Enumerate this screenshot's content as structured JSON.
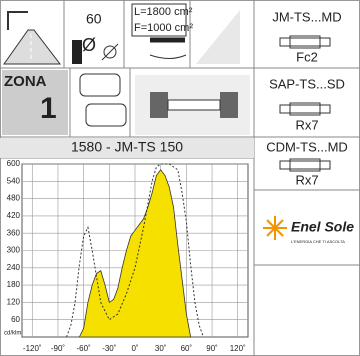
{
  "icons": {
    "speed": "60",
    "pole_symbol": "Ø",
    "surface_l": "L=1800 cm²",
    "surface_f": "F=1000 cm²",
    "zone": "ZONA",
    "zone_number": "1"
  },
  "lamps": [
    {
      "model": "JM-TS...MD",
      "socket": "Fc2"
    },
    {
      "model": "SAP-TS...SD",
      "socket": "Rx7"
    },
    {
      "model": "CDM-TS...MD",
      "socket": "Rx7"
    }
  ],
  "logo": {
    "name": "Enel Sole",
    "tagline": "L'ENERGIA CHE TI ASCOLTA"
  },
  "chart_data": {
    "type": "line",
    "title": "1580 - JM-TS 150",
    "ylabel": "cd/klm",
    "ylim": [
      0,
      600
    ],
    "yticks": [
      60,
      120,
      180,
      240,
      300,
      360,
      420,
      480,
      540,
      600
    ],
    "xlim": [
      -132,
      132
    ],
    "xticks": [
      {
        "value": -120,
        "label": "-120˚"
      },
      {
        "value": -90,
        "label": "-90˚"
      },
      {
        "value": -60,
        "label": "-60˚"
      },
      {
        "value": -30,
        "label": "-30˚"
      },
      {
        "value": 0,
        "label": "0˚"
      },
      {
        "value": 30,
        "label": "30˚"
      },
      {
        "value": 60,
        "label": "60˚"
      },
      {
        "value": 90,
        "label": "90˚"
      },
      {
        "value": 120,
        "label": "120˚"
      }
    ],
    "grid": true,
    "series": [
      {
        "color": "#f5e000",
        "fill": true,
        "x": [
          -65,
          -60,
          -55,
          -50,
          -45,
          -40,
          -35,
          -30,
          -25,
          -20,
          -15,
          -10,
          -5,
          0,
          5,
          10,
          15,
          20,
          25,
          30,
          35,
          40,
          45,
          50,
          55,
          60,
          65
        ],
        "values": [
          0,
          30,
          120,
          180,
          220,
          230,
          180,
          120,
          130,
          170,
          240,
          300,
          350,
          370,
          390,
          410,
          450,
          500,
          560,
          580,
          560,
          520,
          450,
          320,
          200,
          80,
          0
        ]
      },
      {
        "color": "#333333",
        "dashed": true,
        "x": [
          -80,
          -75,
          -70,
          -65,
          -60,
          -55,
          -50,
          -40,
          -30,
          -20,
          -10,
          0,
          10,
          20,
          25,
          30,
          40,
          50,
          55,
          60,
          65,
          70,
          75,
          80
        ],
        "values": [
          0,
          40,
          120,
          250,
          350,
          380,
          300,
          120,
          60,
          80,
          150,
          240,
          380,
          540,
          590,
          600,
          600,
          580,
          500,
          400,
          250,
          120,
          40,
          0
        ]
      }
    ]
  }
}
